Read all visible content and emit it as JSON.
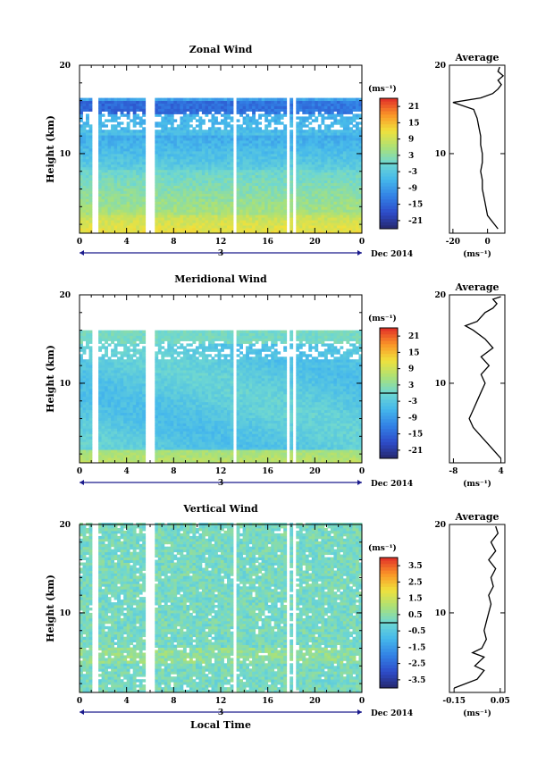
{
  "chart_data": [
    {
      "type": "heatmap",
      "title": "Zonal Wind",
      "ylabel": "Height (km)",
      "xlabel": "",
      "y_ticks": [
        "20",
        "10"
      ],
      "ylim": [
        1,
        20
      ],
      "x_ticks": [
        "0",
        "4",
        "8",
        "12",
        "16",
        "20",
        "0"
      ],
      "xlim": [
        0,
        24
      ],
      "date_day": "3",
      "date_label": "Dec 2014",
      "colorbar_unit": "(ms⁻¹)",
      "colorbar_ticks": [
        "21",
        "15",
        "9",
        "3",
        "-3",
        "-9",
        "-15",
        "-21"
      ],
      "colorbar_range": [
        -24,
        24
      ],
      "profile": {
        "title": "Average",
        "unit": "(ms⁻¹)",
        "x_ticks": [
          "-20",
          "0"
        ],
        "xlim": [
          -22,
          10
        ],
        "x_tick_values": [
          -20,
          0
        ],
        "y_ticks": [
          "20",
          "10"
        ],
        "points": [
          [
            6,
            1.5
          ],
          [
            4,
            2
          ],
          [
            2,
            2.5
          ],
          [
            0,
            3
          ],
          [
            -1,
            4
          ],
          [
            -2,
            5
          ],
          [
            -3,
            6
          ],
          [
            -3,
            7
          ],
          [
            -4,
            8
          ],
          [
            -3,
            9
          ],
          [
            -3,
            10
          ],
          [
            -4,
            11
          ],
          [
            -4,
            12
          ],
          [
            -5,
            13
          ],
          [
            -6,
            14
          ],
          [
            -8,
            15
          ],
          [
            -20,
            15.8
          ],
          [
            -4,
            16.3
          ],
          [
            3,
            16.8
          ],
          [
            6,
            17.3
          ],
          [
            8,
            17.8
          ],
          [
            6,
            18.3
          ],
          [
            9,
            18.8
          ],
          [
            6,
            19.3
          ],
          [
            7,
            19.8
          ]
        ]
      }
    },
    {
      "type": "heatmap",
      "title": "Meridional Wind",
      "ylabel": "Height (km)",
      "xlabel": "",
      "y_ticks": [
        "20",
        "10"
      ],
      "ylim": [
        1,
        20
      ],
      "x_ticks": [
        "0",
        "4",
        "8",
        "12",
        "16",
        "20",
        "0"
      ],
      "xlim": [
        0,
        24
      ],
      "date_day": "3",
      "date_label": "Dec 2014",
      "colorbar_unit": "(ms⁻¹)",
      "colorbar_ticks": [
        "21",
        "15",
        "9",
        "3",
        "-3",
        "-9",
        "-15",
        "-21"
      ],
      "colorbar_range": [
        -24,
        24
      ],
      "profile": {
        "title": "Average",
        "unit": "(ms⁻¹)",
        "x_ticks": [
          "-8",
          "4"
        ],
        "xlim": [
          -9,
          5
        ],
        "x_tick_values": [
          -8,
          4
        ],
        "y_ticks": [
          "20",
          "10"
        ],
        "points": [
          [
            4,
            1.5
          ],
          [
            3,
            2
          ],
          [
            1,
            3
          ],
          [
            -1,
            4
          ],
          [
            -3,
            5
          ],
          [
            -4,
            6
          ],
          [
            -3,
            7
          ],
          [
            -2,
            8
          ],
          [
            -1,
            9
          ],
          [
            0,
            10
          ],
          [
            -1,
            11
          ],
          [
            1,
            12
          ],
          [
            -1,
            13
          ],
          [
            2,
            14
          ],
          [
            0,
            15
          ],
          [
            -3,
            16
          ],
          [
            -5,
            16.5
          ],
          [
            -2,
            17
          ],
          [
            0,
            18
          ],
          [
            2,
            18.5
          ],
          [
            3,
            19
          ],
          [
            2,
            19.5
          ],
          [
            4,
            19.8
          ]
        ]
      }
    },
    {
      "type": "heatmap",
      "title": "Vertical Wind",
      "ylabel": "Height (km)",
      "xlabel": "Local Time",
      "y_ticks": [
        "20",
        "10"
      ],
      "ylim": [
        1,
        20
      ],
      "x_ticks": [
        "0",
        "4",
        "8",
        "12",
        "16",
        "20",
        "0"
      ],
      "xlim": [
        0,
        24
      ],
      "date_day": "3",
      "date_label": "Dec 2014",
      "colorbar_unit": "(ms⁻¹)",
      "colorbar_ticks": [
        "3.5",
        "2.5",
        "1.5",
        "0.5",
        "-0.5",
        "-1.5",
        "-2.5",
        "-3.5"
      ],
      "colorbar_range": [
        -4,
        4
      ],
      "profile": {
        "title": "Average",
        "unit": "(ms⁻¹)",
        "x_ticks": [
          "-0.15",
          "0.05"
        ],
        "xlim": [
          -0.17,
          0.07
        ],
        "x_tick_values": [
          -0.15,
          0.05
        ],
        "y_ticks": [
          "20",
          "10"
        ],
        "points": [
          [
            -0.15,
            1.5
          ],
          [
            -0.05,
            2.5
          ],
          [
            -0.02,
            3.5
          ],
          [
            -0.06,
            4
          ],
          [
            -0.02,
            5
          ],
          [
            -0.07,
            5.5
          ],
          [
            -0.03,
            6
          ],
          [
            -0.01,
            7
          ],
          [
            -0.02,
            8
          ],
          [
            -0.01,
            9
          ],
          [
            0.0,
            10
          ],
          [
            0.01,
            11
          ],
          [
            0.0,
            12
          ],
          [
            0.02,
            13
          ],
          [
            0.01,
            14
          ],
          [
            0.03,
            15
          ],
          [
            0.0,
            16
          ],
          [
            0.03,
            17
          ],
          [
            0.01,
            18
          ],
          [
            0.04,
            19
          ],
          [
            0.03,
            19.8
          ]
        ]
      }
    }
  ]
}
